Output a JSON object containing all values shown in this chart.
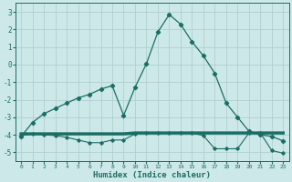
{
  "xlabel": "Humidex (Indice chaleur)",
  "xlim": [
    -0.5,
    23.5
  ],
  "ylim": [
    -5.5,
    3.5
  ],
  "yticks": [
    -5,
    -4,
    -3,
    -2,
    -1,
    0,
    1,
    2,
    3
  ],
  "xticks": [
    0,
    1,
    2,
    3,
    4,
    5,
    6,
    7,
    8,
    9,
    10,
    11,
    12,
    13,
    14,
    15,
    16,
    17,
    18,
    19,
    20,
    21,
    22,
    23
  ],
  "background_color": "#cde8e8",
  "grid_color": "#b0d0d0",
  "line_color": "#1a6e65",
  "line1_x": [
    0,
    1,
    2,
    3,
    4,
    5,
    6,
    7,
    8,
    9,
    10,
    11,
    12,
    13,
    14,
    15,
    16,
    17,
    18,
    19,
    20,
    21,
    22,
    23
  ],
  "line1_y": [
    -4.1,
    -3.3,
    -2.8,
    -2.5,
    -2.2,
    -1.9,
    -1.7,
    -1.4,
    -1.2,
    -2.9,
    -1.3,
    0.05,
    1.85,
    2.85,
    2.3,
    1.3,
    0.5,
    -0.5,
    -2.2,
    -3.0,
    -3.8,
    -4.0,
    -4.1,
    -4.35
  ],
  "line2_x": [
    0,
    1,
    2,
    3,
    4,
    5,
    6,
    7,
    8,
    9,
    10,
    11,
    12,
    13,
    14,
    15,
    16,
    17,
    18,
    19,
    20,
    21,
    22,
    23
  ],
  "line2_y": [
    -4.05,
    -3.95,
    -4.0,
    -4.05,
    -4.15,
    -4.3,
    -4.45,
    -4.45,
    -4.3,
    -4.3,
    -3.95,
    -3.9,
    -3.9,
    -3.9,
    -3.9,
    -3.9,
    -4.05,
    -4.8,
    -4.8,
    -4.8,
    -3.9,
    -3.9,
    -4.9,
    -5.05
  ],
  "line3_x": [
    0,
    9,
    10,
    19,
    20,
    23
  ],
  "line3_y": [
    -3.95,
    -3.95,
    -3.9,
    -3.9,
    -3.9,
    -3.9
  ]
}
